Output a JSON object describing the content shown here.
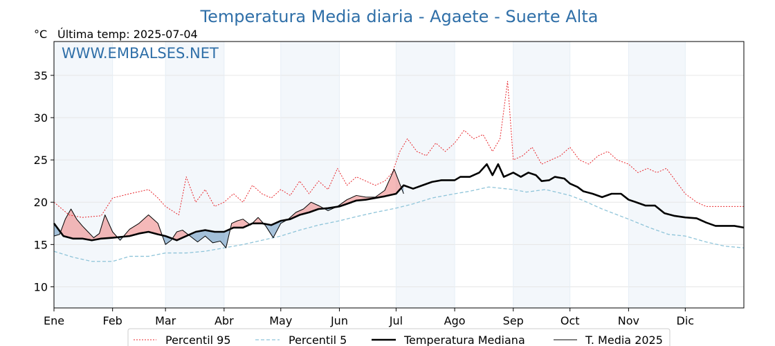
{
  "chart_data": {
    "type": "line",
    "title": "Temperatura Media diaria - Agaete - Suerte Alta",
    "unit_label": "°C",
    "last_temp_label": "Última temp: 2025-07-04",
    "watermark": "WWW.EMBALSES.NET",
    "ylim": [
      7.5,
      39
    ],
    "yticks": [
      10,
      15,
      20,
      25,
      30,
      35
    ],
    "xlim": [
      0,
      365
    ],
    "month_ticks": [
      {
        "label": "Ene",
        "day": 0
      },
      {
        "label": "Feb",
        "day": 31
      },
      {
        "label": "Mar",
        "day": 59
      },
      {
        "label": "Abr",
        "day": 90
      },
      {
        "label": "May",
        "day": 120
      },
      {
        "label": "Jun",
        "day": 151
      },
      {
        "label": "Jul",
        "day": 181
      },
      {
        "label": "Ago",
        "day": 212
      },
      {
        "label": "Sep",
        "day": 243
      },
      {
        "label": "Oct",
        "day": 273
      },
      {
        "label": "Nov",
        "day": 304
      },
      {
        "label": "Dic",
        "day": 334
      }
    ],
    "grid": true,
    "legend_position": "bottom",
    "series": [
      {
        "name": "Percentil 95",
        "color": "#e8242a",
        "style": "dotted",
        "x": [
          0,
          8,
          15,
          25,
          31,
          40,
          50,
          55,
          59,
          66,
          70,
          75,
          80,
          85,
          90,
          95,
          100,
          105,
          110,
          115,
          120,
          125,
          130,
          135,
          140,
          145,
          150,
          155,
          160,
          165,
          170,
          175,
          179,
          183,
          187,
          192,
          197,
          202,
          207,
          212,
          217,
          222,
          227,
          232,
          236,
          240,
          243,
          248,
          253,
          258,
          263,
          268,
          273,
          278,
          283,
          288,
          293,
          298,
          304,
          309,
          314,
          319,
          324,
          329,
          334,
          340,
          345,
          350,
          355,
          360,
          365
        ],
        "y": [
          20,
          18.5,
          18.2,
          18.4,
          20.5,
          21,
          21.5,
          20.5,
          19.5,
          18.5,
          23,
          20,
          21.5,
          19.5,
          20,
          21,
          20,
          22,
          21,
          20.5,
          21.5,
          20.8,
          22.5,
          21,
          22.5,
          21.5,
          24,
          22,
          23,
          22.5,
          22,
          22.5,
          23.5,
          26,
          27.5,
          26,
          25.5,
          27,
          26,
          27,
          28.5,
          27.5,
          28,
          26,
          27.5,
          34.3,
          25,
          25.5,
          26.5,
          24.5,
          25,
          25.5,
          26.5,
          25,
          24.5,
          25.5,
          26,
          25,
          24.5,
          23.5,
          24,
          23.5,
          24,
          22.5,
          21,
          20,
          19.5,
          19.5,
          19.5,
          19.5,
          19.5
        ]
      },
      {
        "name": "Percentil 5",
        "color": "#8ec4d9",
        "style": "dashed",
        "x": [
          0,
          10,
          20,
          31,
          40,
          50,
          59,
          70,
          80,
          90,
          100,
          110,
          120,
          130,
          140,
          151,
          160,
          170,
          181,
          190,
          200,
          212,
          220,
          230,
          243,
          250,
          260,
          273,
          280,
          290,
          304,
          315,
          325,
          334,
          345,
          355,
          365
        ],
        "y": [
          14.2,
          13.5,
          13,
          13,
          13.6,
          13.6,
          14,
          14,
          14.2,
          14.6,
          15,
          15.5,
          16,
          16.7,
          17.3,
          17.8,
          18.3,
          18.8,
          19.3,
          19.8,
          20.5,
          21,
          21.3,
          21.8,
          21.5,
          21.2,
          21.5,
          20.8,
          20.2,
          19.2,
          18,
          17,
          16.2,
          16,
          15.3,
          14.8,
          14.6
        ]
      },
      {
        "name": "Temperatura Mediana",
        "color": "#000000",
        "style": "solid-thick",
        "x": [
          0,
          5,
          10,
          15,
          20,
          25,
          31,
          40,
          45,
          50,
          55,
          59,
          65,
          70,
          75,
          80,
          85,
          90,
          95,
          100,
          105,
          110,
          115,
          120,
          125,
          130,
          135,
          140,
          145,
          151,
          155,
          160,
          165,
          170,
          175,
          181,
          185,
          190,
          195,
          200,
          205,
          212,
          215,
          220,
          225,
          229,
          232,
          235,
          238,
          243,
          247,
          251,
          255,
          258,
          262,
          265,
          270,
          273,
          277,
          280,
          285,
          290,
          295,
          300,
          304,
          308,
          313,
          318,
          323,
          328,
          334,
          340,
          345,
          350,
          355,
          360,
          365
        ],
        "y": [
          17.5,
          16,
          15.7,
          15.7,
          15.5,
          15.7,
          15.8,
          16,
          16.3,
          16.5,
          16.2,
          16,
          15.5,
          16,
          16.5,
          16.7,
          16.5,
          16.5,
          17,
          17,
          17.5,
          17.5,
          17.3,
          17.8,
          18,
          18.5,
          18.8,
          19.2,
          19.3,
          19.5,
          19.8,
          20.2,
          20.3,
          20.5,
          20.7,
          21,
          22,
          21.6,
          22,
          22.4,
          22.6,
          22.6,
          23,
          23,
          23.5,
          24.5,
          23.2,
          24.5,
          23,
          23.5,
          23,
          23.5,
          23.2,
          22.5,
          22.6,
          23,
          22.8,
          22.2,
          21.8,
          21.3,
          21,
          20.6,
          21,
          21,
          20.3,
          20,
          19.6,
          19.6,
          18.7,
          18.4,
          18.2,
          18.1,
          17.6,
          17.2,
          17.2,
          17.2,
          17
        ]
      },
      {
        "name": "T. Media 2025",
        "color": "#000000",
        "style": "solid-thin",
        "x": [
          0,
          3,
          6,
          9,
          12,
          15,
          18,
          21,
          24,
          27,
          31,
          35,
          40,
          45,
          50,
          55,
          59,
          62,
          65,
          68,
          72,
          76,
          80,
          84,
          88,
          91,
          94,
          97,
          100,
          104,
          108,
          112,
          116,
          120,
          124,
          128,
          132,
          136,
          140,
          145,
          150,
          155,
          160,
          165,
          170,
          175,
          180,
          185
        ],
        "y": [
          16,
          16.2,
          18,
          19.2,
          18,
          17.2,
          16.5,
          15.8,
          16.3,
          18.5,
          16.5,
          15.5,
          16.8,
          17.5,
          18.5,
          17.5,
          15,
          15.5,
          16.5,
          16.7,
          16,
          15.3,
          16,
          15.2,
          15.4,
          14.6,
          17.5,
          17.8,
          18,
          17.3,
          18.2,
          17.2,
          15.8,
          17.5,
          18,
          18.8,
          19.2,
          20,
          19.6,
          19,
          19.5,
          20.3,
          20.8,
          20.6,
          20.6,
          21.4,
          23.9,
          21
        ]
      }
    ]
  }
}
